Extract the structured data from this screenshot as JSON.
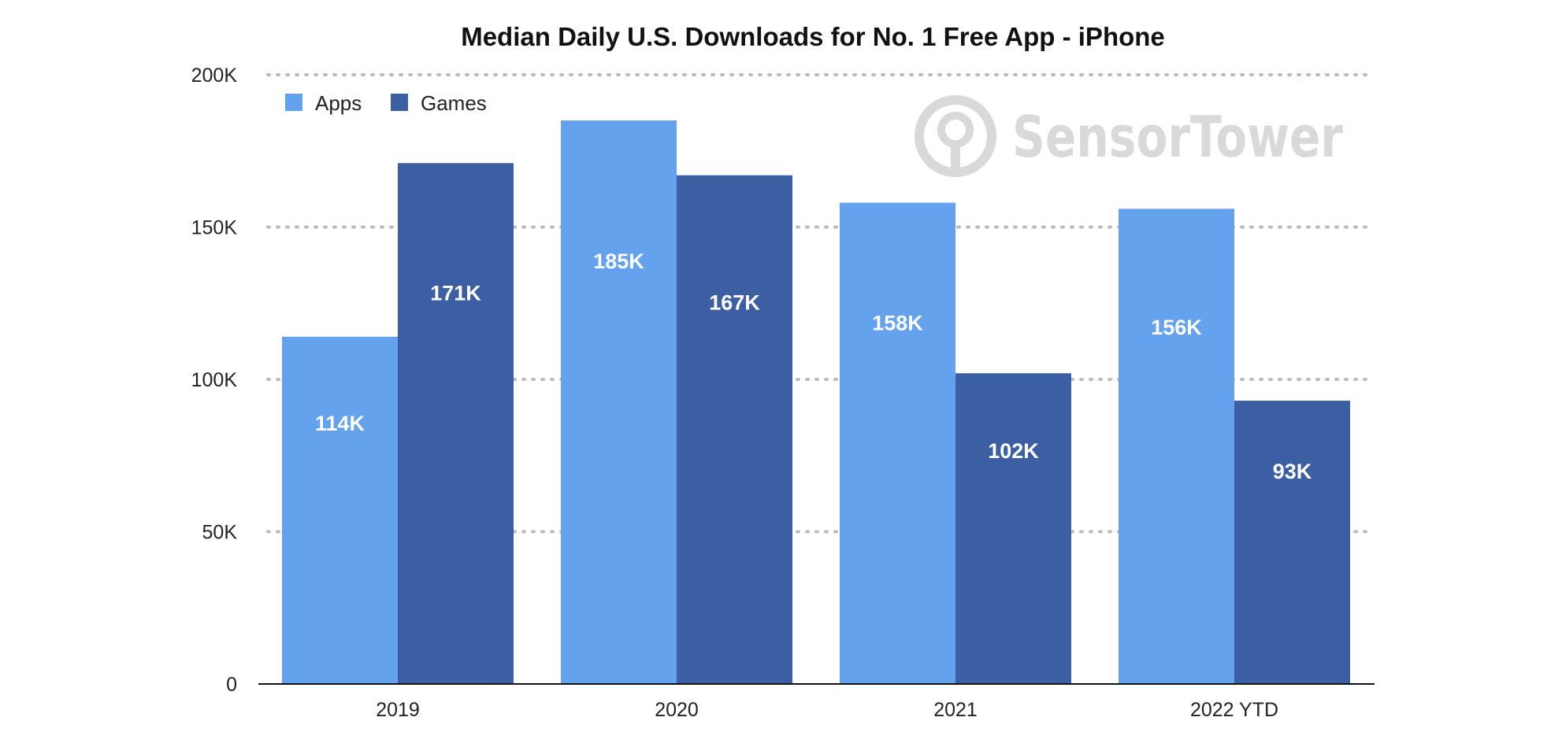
{
  "chart_data": {
    "type": "bar",
    "title": "Median Daily U.S. Downloads for No. 1 Free App - iPhone",
    "categories": [
      "2019",
      "2020",
      "2021",
      "2022 YTD"
    ],
    "series": [
      {
        "name": "Apps",
        "values": [
          114000,
          185000,
          158000,
          156000
        ],
        "labels": [
          "114K",
          "185K",
          "158K",
          "156K"
        ],
        "color": "#64a2ee"
      },
      {
        "name": "Games",
        "values": [
          171000,
          167000,
          102000,
          93000
        ],
        "labels": [
          "171K",
          "167K",
          "102K",
          "93K"
        ],
        "color": "#3b5fa2"
      }
    ],
    "ylim": [
      0,
      200000
    ],
    "yticks": [
      {
        "value": 0,
        "label": "0"
      },
      {
        "value": 50000,
        "label": "50K"
      },
      {
        "value": 100000,
        "label": "100K"
      },
      {
        "value": 150000,
        "label": "150K"
      },
      {
        "value": 200000,
        "label": "200K"
      }
    ],
    "grid": true,
    "legend_position": "top-left",
    "xlabel": "",
    "ylabel": ""
  },
  "watermark": {
    "text": "SensorTower",
    "icon": "sensor-tower-logo-icon"
  }
}
